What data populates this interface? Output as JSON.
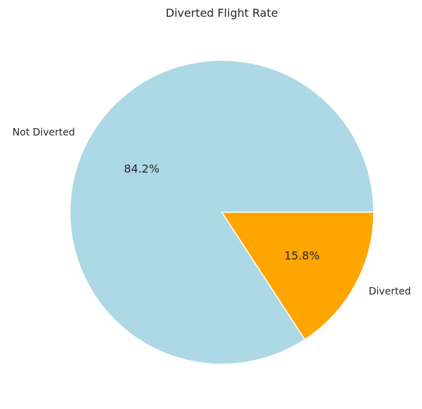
{
  "chart_data": {
    "type": "pie",
    "title": "Diverted Flight Rate",
    "slices": [
      {
        "label": "Not Diverted",
        "value": 84.2,
        "pct_label": "84.2%",
        "color": "#add8e6"
      },
      {
        "label": "Diverted",
        "value": 15.8,
        "pct_label": "15.8%",
        "color": "#ffa500"
      }
    ],
    "start_angle_deg": 0,
    "direction": "counterclockwise",
    "edge_color": "#ffffff"
  }
}
